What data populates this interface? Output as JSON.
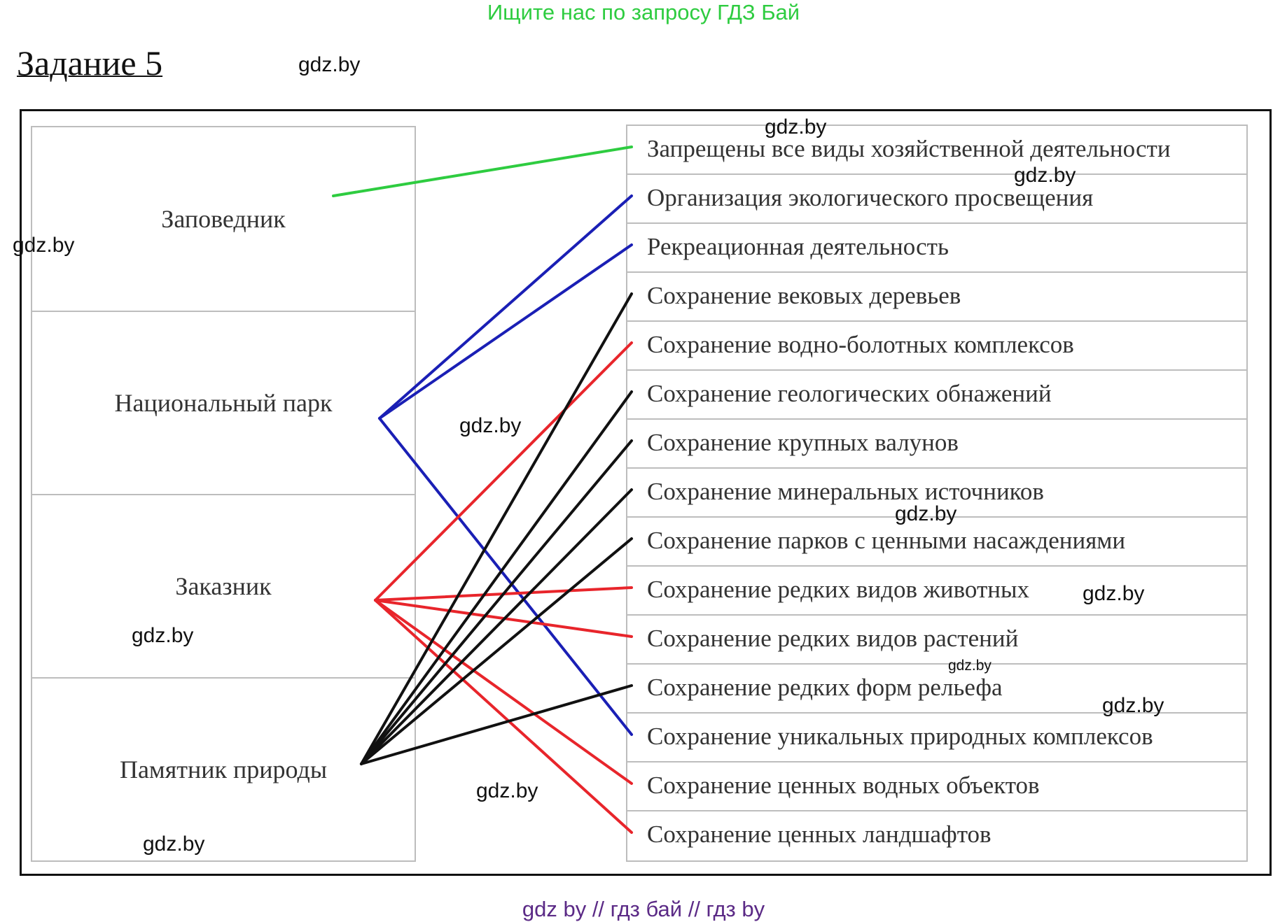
{
  "top_banner": "Ищите нас по запросу ГДЗ Бай",
  "task_title": "Задание 5",
  "categories": [
    {
      "label": "Заповедник"
    },
    {
      "label": "Национальный парк"
    },
    {
      "label": "Заказник"
    },
    {
      "label": "Памятник природы"
    }
  ],
  "activities": [
    {
      "label": "Запрещены все виды хозяйственной деятельности"
    },
    {
      "label": "Организация экологического просвещения"
    },
    {
      "label": "Рекреационная деятельность"
    },
    {
      "label": "Сохранение вековых деревьев"
    },
    {
      "label": "Сохранение водно-болотных комплексов"
    },
    {
      "label": "Сохранение геологических обнажений"
    },
    {
      "label": "Сохранение крупных валунов"
    },
    {
      "label": "Сохранение минеральных источников"
    },
    {
      "label": "Сохранение парков с ценными насаждениями"
    },
    {
      "label": "Сохранение редких видов животных"
    },
    {
      "label": "Сохранение редких видов растений"
    },
    {
      "label": "Сохранение редких форм рельефа"
    },
    {
      "label": "Сохранение уникальных природных комплексов"
    },
    {
      "label": "Сохранение ценных водных объектов"
    },
    {
      "label": "Сохранение ценных ландшафтов"
    }
  ],
  "connection_colors": [
    "#2ecc40",
    "#1a1fb5",
    "#e8252b",
    "#111111"
  ],
  "connections": [
    {
      "category": 0,
      "activities": [
        0
      ]
    },
    {
      "category": 1,
      "activities": [
        1,
        2,
        12
      ]
    },
    {
      "category": 2,
      "activities": [
        4,
        9,
        10,
        13,
        14
      ]
    },
    {
      "category": 3,
      "activities": [
        3,
        5,
        6,
        7,
        8,
        11
      ]
    }
  ],
  "watermarks": [
    "gdz.by",
    "gdz.by",
    "gdz.by",
    "gdz.by",
    "gdz.by",
    "gdz.by",
    "gdz.by",
    "gdz.by",
    "gdz.by",
    "gdz.by",
    "gdz.by",
    "gdz.by"
  ],
  "footer": "gdz by  //  гдз бай  //  гдз by"
}
